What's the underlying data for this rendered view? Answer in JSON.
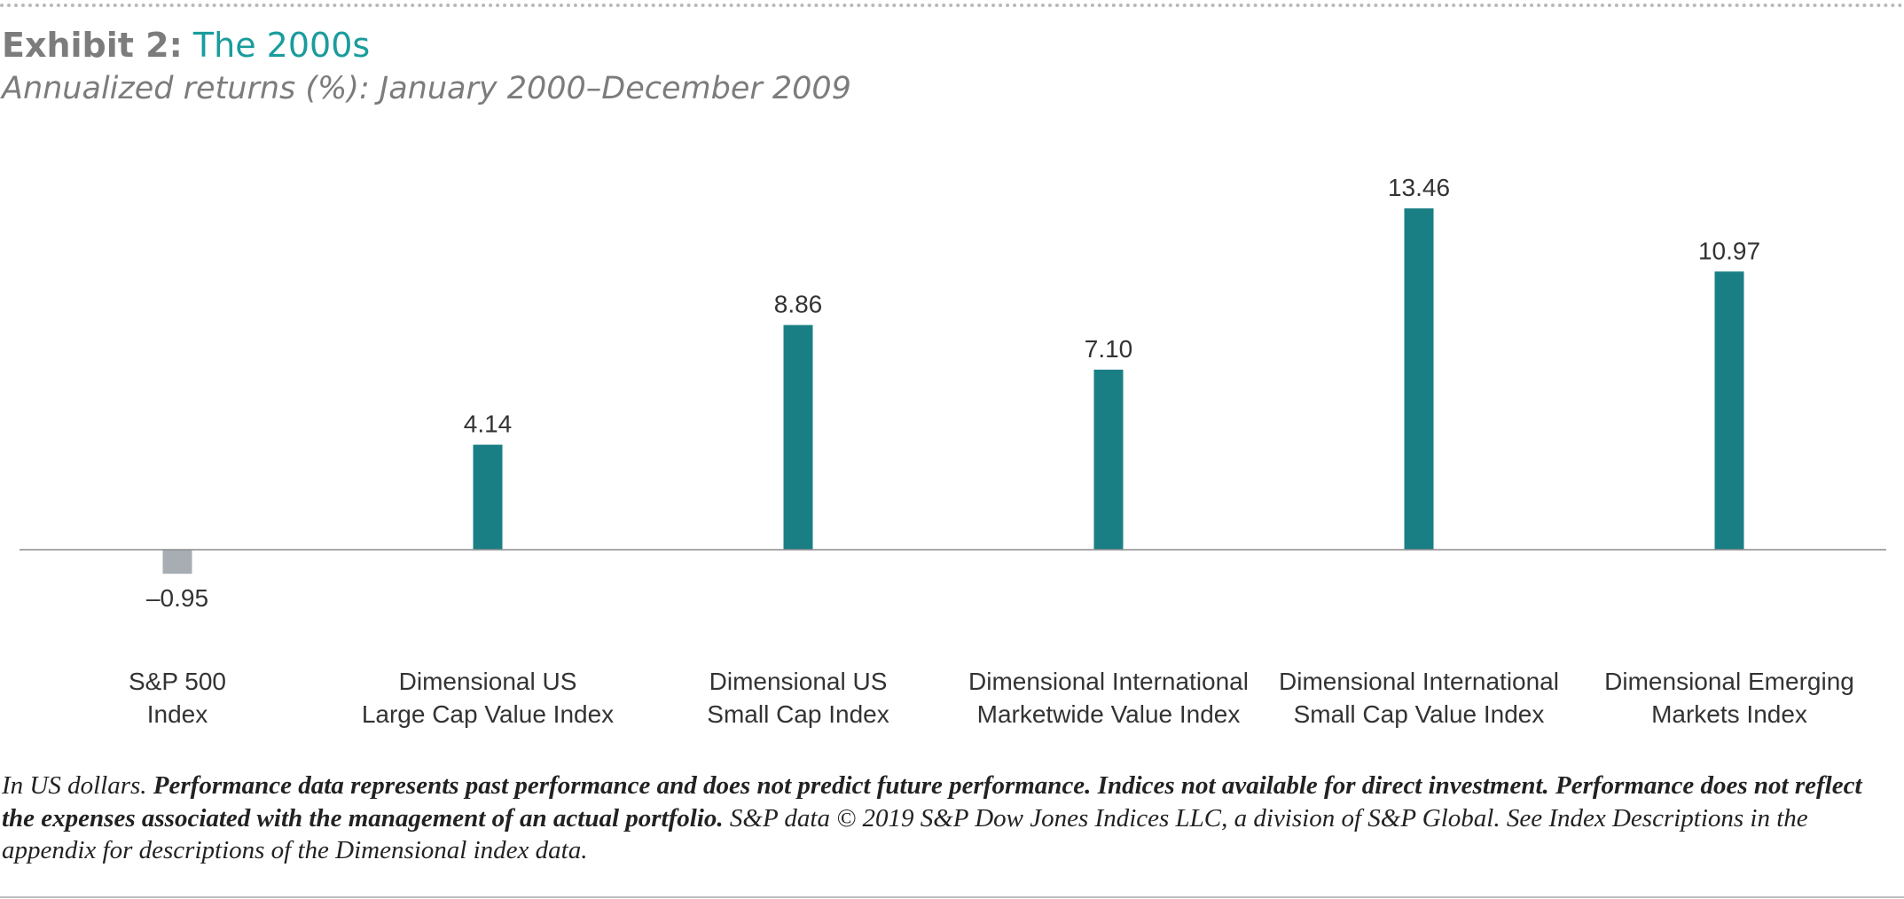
{
  "header": {
    "exhibit": "Exhibit 2:",
    "title": "The 2000s",
    "subtitle": "Annualized returns (%): January 2000–December 2009"
  },
  "chart_data": {
    "type": "bar",
    "categories": [
      [
        "S&P 500",
        "Index"
      ],
      [
        "Dimensional US",
        "Large Cap Value Index"
      ],
      [
        "Dimensional US",
        "Small Cap Index"
      ],
      [
        "Dimensional International",
        "Marketwide Value Index"
      ],
      [
        "Dimensional International",
        "Small Cap Value Index"
      ],
      [
        "Dimensional Emerging",
        "Markets Index"
      ]
    ],
    "values": [
      -0.95,
      4.14,
      8.86,
      7.1,
      13.46,
      10.97
    ],
    "data_labels": [
      "–0.95",
      "4.14",
      "8.86",
      "7.10",
      "13.46",
      "10.97"
    ],
    "colors": [
      "#a7adb3",
      "#1a7f84",
      "#1a7f84",
      "#1a7f84",
      "#1a7f84",
      "#1a7f84"
    ],
    "ylim": [
      -0.95,
      13.46
    ],
    "grid": false,
    "zero_line": true
  },
  "footnote": {
    "lead": "In US dollars. ",
    "bold": "Performance data represents past performance and does not predict future performance. Indices not available for direct investment. Performance does not reflect the expenses associated with the management of an actual portfolio.",
    "tail": " S&P data © 2019 S&P Dow Jones Indices LLC, a division of S&P Global. See Index Descriptions in the appendix for descriptions of the Dimensional index data."
  }
}
